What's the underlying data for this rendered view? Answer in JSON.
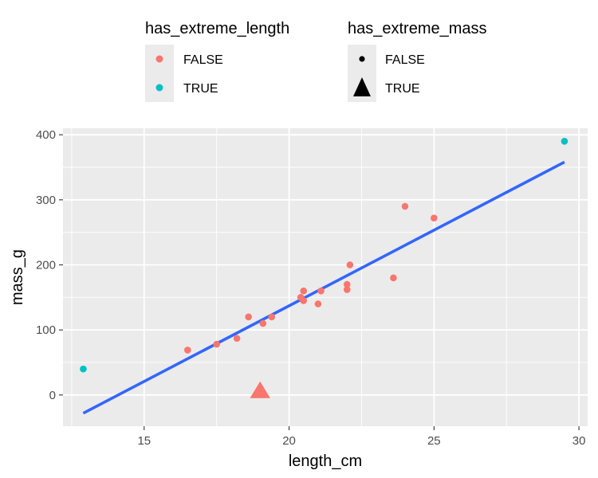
{
  "chart_data": {
    "type": "scatter",
    "xlabel": "length_cm",
    "ylabel": "mass_g",
    "xlim": [
      12.2,
      30.3
    ],
    "ylim": [
      -48,
      410
    ],
    "x_ticks": [
      15,
      20,
      25,
      30
    ],
    "x_tick_labels": [
      "15",
      "20",
      "25",
      "30"
    ],
    "y_ticks": [
      0,
      100,
      200,
      300,
      400
    ],
    "y_tick_labels": [
      "0",
      "100",
      "200",
      "300",
      "400"
    ],
    "grid": true,
    "legend_position": "top",
    "legends": [
      {
        "title": "has_extreme_length",
        "aesthetic": "color",
        "entries": [
          {
            "label": "FALSE",
            "color": "#f8766d"
          },
          {
            "label": "TRUE",
            "color": "#00bfc4"
          }
        ]
      },
      {
        "title": "has_extreme_mass",
        "aesthetic": "shape",
        "entries": [
          {
            "label": "FALSE",
            "shape": "circle"
          },
          {
            "label": "TRUE",
            "shape": "triangle"
          }
        ]
      }
    ],
    "points": [
      {
        "x": 16.5,
        "y": 69,
        "extreme_length": false,
        "extreme_mass": false
      },
      {
        "x": 17.5,
        "y": 78,
        "extreme_length": false,
        "extreme_mass": false
      },
      {
        "x": 18.2,
        "y": 87,
        "extreme_length": false,
        "extreme_mass": false
      },
      {
        "x": 18.6,
        "y": 120,
        "extreme_length": false,
        "extreme_mass": false
      },
      {
        "x": 19.1,
        "y": 110,
        "extreme_length": false,
        "extreme_mass": false
      },
      {
        "x": 19.4,
        "y": 120,
        "extreme_length": false,
        "extreme_mass": false
      },
      {
        "x": 20.4,
        "y": 150,
        "extreme_length": false,
        "extreme_mass": false
      },
      {
        "x": 20.5,
        "y": 145,
        "extreme_length": false,
        "extreme_mass": false
      },
      {
        "x": 20.5,
        "y": 160,
        "extreme_length": false,
        "extreme_mass": false
      },
      {
        "x": 21.0,
        "y": 140,
        "extreme_length": false,
        "extreme_mass": false
      },
      {
        "x": 21.1,
        "y": 160,
        "extreme_length": false,
        "extreme_mass": false
      },
      {
        "x": 22.0,
        "y": 162,
        "extreme_length": false,
        "extreme_mass": false
      },
      {
        "x": 22.0,
        "y": 170,
        "extreme_length": false,
        "extreme_mass": false
      },
      {
        "x": 22.1,
        "y": 200,
        "extreme_length": false,
        "extreme_mass": false
      },
      {
        "x": 23.6,
        "y": 180,
        "extreme_length": false,
        "extreme_mass": false
      },
      {
        "x": 24.0,
        "y": 290,
        "extreme_length": false,
        "extreme_mass": false
      },
      {
        "x": 25.0,
        "y": 272,
        "extreme_length": false,
        "extreme_mass": false
      },
      {
        "x": 19.0,
        "y": 5,
        "extreme_length": false,
        "extreme_mass": true
      },
      {
        "x": 12.9,
        "y": 40,
        "extreme_length": true,
        "extreme_mass": false
      },
      {
        "x": 29.5,
        "y": 390,
        "extreme_length": true,
        "extreme_mass": false
      }
    ],
    "trend_line": {
      "x": [
        12.9,
        29.5
      ],
      "y": [
        -28,
        358
      ],
      "color": "#3366ff"
    }
  }
}
